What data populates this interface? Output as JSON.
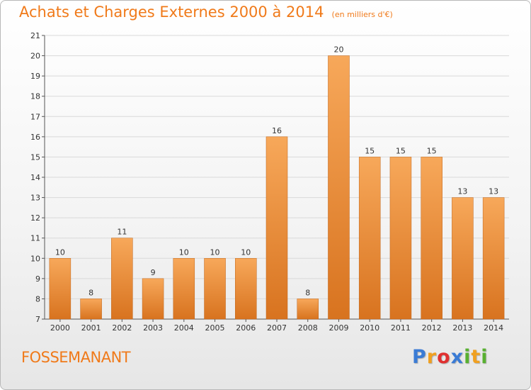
{
  "header": {
    "title": "Achats et Charges Externes 2000 à 2014",
    "unit": "(en milliers d'€)"
  },
  "footer": {
    "place": "FOSSEMANANT",
    "logo": {
      "letters": [
        "P",
        "r",
        "o",
        "x",
        "i",
        "t",
        "i"
      ],
      "colors": [
        "#3a7bd5",
        "#f0a020",
        "#e03030",
        "#3a7bd5",
        "#58b030",
        "#f0a020",
        "#58b030"
      ]
    }
  },
  "chart_data": {
    "type": "bar",
    "title": "Achats et Charges Externes 2000 à 2014",
    "subtitle": "(en milliers d'€)",
    "xlabel": "",
    "ylabel": "",
    "categories": [
      "2000",
      "2001",
      "2002",
      "2003",
      "2004",
      "2005",
      "2006",
      "2007",
      "2008",
      "2009",
      "2010",
      "2011",
      "2012",
      "2013",
      "2014"
    ],
    "values": [
      10,
      8,
      11,
      9,
      10,
      10,
      10,
      16,
      8,
      20,
      15,
      15,
      15,
      13,
      13
    ],
    "ylim": [
      7,
      21
    ],
    "yticks": [
      7,
      8,
      9,
      10,
      11,
      12,
      13,
      14,
      15,
      16,
      17,
      18,
      19,
      20,
      21
    ],
    "grid": true,
    "bar_color_top": "#f7a85a",
    "bar_color_bottom": "#d8731f",
    "grid_color": "#d9d9d9"
  }
}
